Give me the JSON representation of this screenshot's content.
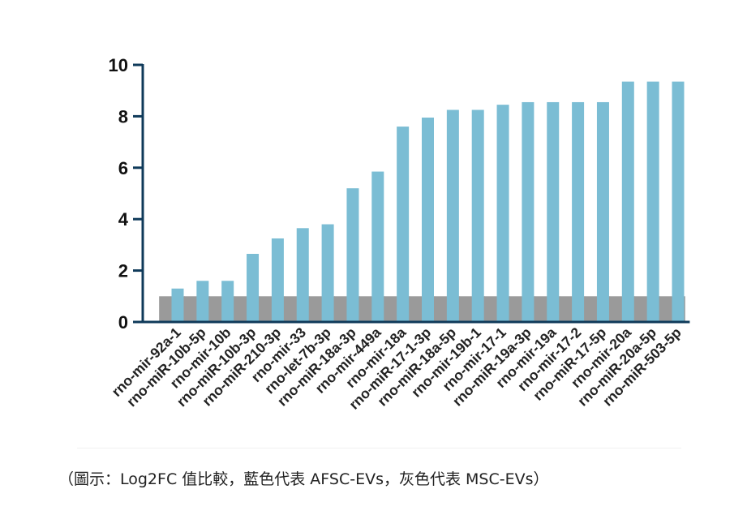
{
  "caption": "（圖示：Log2FC 值比較，藍色代表 AFSC-EVs，灰色代表 MSC-EVs）",
  "chart_data": {
    "type": "bar",
    "title": "",
    "xlabel": "",
    "ylabel": "",
    "ylim": [
      0,
      10
    ],
    "yticks": [
      0,
      2,
      4,
      6,
      8,
      10
    ],
    "grid": false,
    "colors": {
      "afsc": "#7bbdd4",
      "msc": "#9a9a9a",
      "axis": "#0f3a5a"
    },
    "categories": [
      "rno-mir-92a-1",
      "rno-miR-10b-5p",
      "rno-mir-10b",
      "rno-miR-10b-3p",
      "rno-miR-210-3p",
      "rno-mir-33",
      "rno-let-7b-3p",
      "rno-miR-18a-3p",
      "rno-mir-449a",
      "rno-mir-18a",
      "rno-miR-17-1-3p",
      "rno-miR-18a-5p",
      "rno-mir-19b-1",
      "rno-mir-17-1",
      "rno-miR-19a-3p",
      "rno-mir-19a",
      "rno-mir-17-2",
      "rno-miR-17-5p",
      "rno-mir-20a",
      "rno-miR-20a-5p",
      "rno-miR-503-5p"
    ],
    "series": [
      {
        "key": "afsc",
        "values": [
          1.3,
          1.6,
          1.6,
          2.65,
          3.25,
          3.65,
          3.8,
          5.2,
          5.85,
          7.6,
          7.95,
          8.25,
          8.25,
          8.45,
          8.55,
          8.55,
          8.55,
          8.55,
          9.35,
          9.35,
          9.35
        ]
      },
      {
        "key": "msc",
        "values": [
          1,
          1,
          1,
          1,
          1,
          1,
          1,
          1,
          1,
          1,
          1,
          1,
          1,
          1,
          1,
          1,
          1,
          1,
          1,
          1,
          1
        ]
      }
    ]
  }
}
